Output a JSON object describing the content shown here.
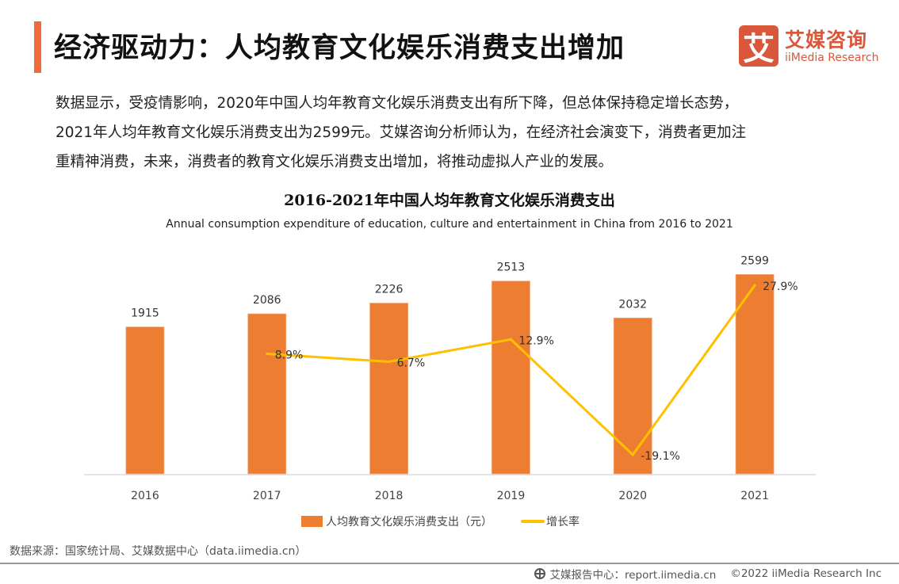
{
  "header": {
    "title": "经济驱动力：人均教育文化娱乐消费支出增加",
    "accent_color": "#f26a3b"
  },
  "logo": {
    "mark": "艾",
    "name_cn": "艾媒咨询",
    "name_en": "iiMedia Research",
    "color": "#d9573a"
  },
  "summary": {
    "lines": [
      "数据显示，受疫情影响，2020年中国人均年教育文化娱乐消费支出有所下降，但总体保持稳定增长态势，",
      "2021年人均年教育文化娱乐消费支出为2599元。艾媒咨询分析师认为，在经济社会演变下，消费者更加注",
      "重精神消费，未来，消费者的教育文化娱乐消费支出增加，将推动虚拟人产业的发展。"
    ]
  },
  "chart_data": {
    "type": "bar",
    "title": "2016-2021年中国人均年教育文化娱乐消费支出",
    "subtitle": "Annual consumption expenditure of education, culture and entertainment in China from 2016 to 2021",
    "categories": [
      "2016",
      "2017",
      "2018",
      "2019",
      "2020",
      "2021"
    ],
    "xlabel": "",
    "ylabel": "",
    "ylim": [
      0,
      3000
    ],
    "grid": false,
    "legend_position": "bottom",
    "series": [
      {
        "name": "人均教育文化娱乐消费支出（元）",
        "type": "bar",
        "axis": "left",
        "color": "#ed7d31",
        "values": [
          1915,
          2086,
          2226,
          2513,
          2032,
          2599
        ],
        "labels": [
          "1915",
          "2086",
          "2226",
          "2513",
          "2032",
          "2599"
        ]
      },
      {
        "name": "增长率",
        "type": "line",
        "axis": "right",
        "color": "#ffc000",
        "values": [
          null,
          8.9,
          6.7,
          12.9,
          -19.1,
          27.9
        ],
        "labels": [
          "",
          "8.9%",
          "6.7%",
          "12.9%",
          "-19.1%",
          "27.9%"
        ],
        "unit": "%"
      }
    ]
  },
  "footer": {
    "source": "数据来源：国家统计局、艾媒数据中心（data.iimedia.cn）",
    "report_center": "艾媒报告中心：report.iimedia.cn",
    "copyright": "©2022 iiMedia Research Inc",
    "icon": "globe-cursor-icon"
  }
}
